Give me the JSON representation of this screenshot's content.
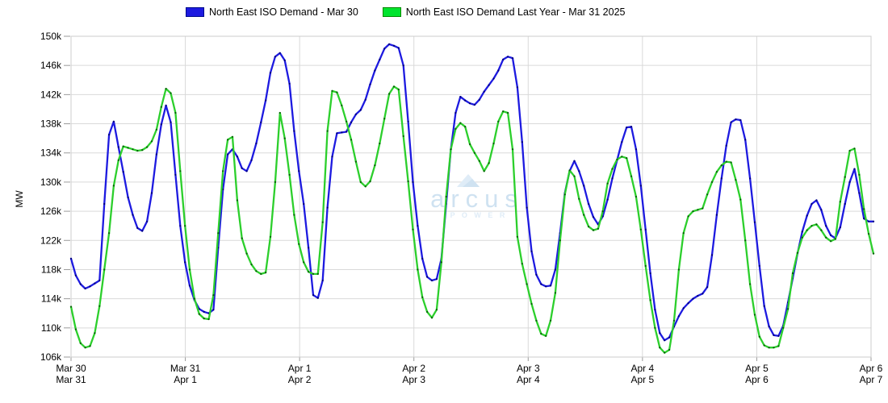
{
  "legend": {
    "items": [
      {
        "label": "North East ISO Demand - Mar 30",
        "swatch_fill": "#1c13e0",
        "swatch_border": "#0000990"
      },
      {
        "label": "North East ISO Demand Last Year - Mar 31 2025",
        "swatch_fill": "#00e42e",
        "swatch_border": "#008a00"
      }
    ]
  },
  "axes": {
    "y_label": "MW",
    "y_tick_labels": [
      "150k",
      "146k",
      "142k",
      "138k",
      "134k",
      "130k",
      "126k",
      "122k",
      "118k",
      "114k",
      "110k",
      "106k"
    ],
    "x_tick_labels_row1": [
      "Mar 30",
      "Mar 31",
      "Apr 1",
      "Apr 2",
      "Apr 3",
      "Apr 4",
      "Apr 5",
      "Apr 6"
    ],
    "x_tick_labels_row2": [
      "Mar 31",
      "Apr 1",
      "Apr 2",
      "Apr 3",
      "Apr 4",
      "Apr 5",
      "Apr 6",
      "Apr 7"
    ]
  },
  "watermark": {
    "name": "arcus",
    "sub": "P O W E R"
  },
  "chart_data": {
    "type": "line",
    "title": "",
    "xlabel": "",
    "ylabel": "MW",
    "y_unit": "MW (values in thousands, k)",
    "ylim": [
      106,
      150
    ],
    "y_tick_step": 4,
    "grid": true,
    "legend_position": "top",
    "x_resolution": "hourly samples, 24 per day, 7 days + 2 trailing hours (170 points)",
    "x_day_labels_current": [
      "Mar 30",
      "Mar 31",
      "Apr 1",
      "Apr 2",
      "Apr 3",
      "Apr 4",
      "Apr 5",
      "Apr 6"
    ],
    "x_day_labels_last_year": [
      "Mar 31",
      "Apr 1",
      "Apr 2",
      "Apr 3",
      "Apr 4",
      "Apr 5",
      "Apr 6",
      "Apr 7"
    ],
    "series": [
      {
        "name": "North East ISO Demand - Mar 30",
        "color": "#1d1ae0",
        "marker_color": "#000078",
        "values": [
          119.5,
          117.2,
          116.0,
          115.4,
          115.7,
          116.1,
          116.5,
          127.0,
          136.5,
          138.3,
          134.8,
          131.4,
          127.9,
          125.5,
          123.7,
          123.3,
          124.6,
          128.5,
          133.8,
          137.9,
          140.5,
          138.2,
          131.0,
          124.0,
          119.0,
          115.8,
          113.8,
          112.6,
          112.2,
          112.0,
          112.5,
          121.0,
          129.0,
          133.8,
          134.5,
          133.5,
          131.9,
          131.5,
          133.0,
          135.3,
          138.2,
          141.2,
          145.0,
          147.2,
          147.7,
          146.7,
          143.5,
          137.0,
          131.5,
          127.0,
          121.0,
          114.5,
          114.1,
          116.5,
          126.5,
          133.5,
          136.7,
          136.8,
          136.9,
          138.2,
          139.3,
          139.9,
          141.3,
          143.4,
          145.3,
          146.8,
          148.3,
          148.9,
          148.7,
          148.4,
          146.0,
          138.3,
          130.0,
          124.0,
          119.5,
          117.0,
          116.5,
          116.7,
          119.5,
          127.0,
          134.5,
          139.5,
          141.7,
          141.2,
          140.8,
          140.6,
          141.3,
          142.4,
          143.3,
          144.2,
          145.3,
          146.8,
          147.2,
          147.0,
          143.0,
          135.5,
          126.5,
          120.5,
          117.3,
          116.0,
          115.7,
          115.8,
          118.0,
          123.0,
          128.5,
          131.5,
          132.9,
          131.5,
          129.5,
          127.0,
          125.2,
          124.2,
          125.3,
          127.6,
          130.5,
          133.0,
          135.5,
          137.5,
          137.6,
          134.5,
          129.5,
          123.5,
          117.5,
          112.5,
          109.3,
          108.3,
          108.7,
          110.2,
          111.6,
          112.7,
          113.4,
          114.0,
          114.4,
          114.7,
          115.6,
          120.0,
          125.5,
          130.5,
          135.0,
          138.2,
          138.6,
          138.5,
          135.8,
          130.5,
          124.5,
          118.5,
          113.0,
          110.2,
          109.0,
          108.9,
          110.3,
          113.5,
          116.8,
          120.2,
          123.2,
          125.4,
          127.0,
          127.5,
          126.2,
          124.0,
          122.7,
          122.3,
          123.8,
          127.0,
          130.0,
          131.8,
          128.5,
          125.0,
          124.6,
          124.6
        ]
      },
      {
        "name": "North East ISO Demand Last Year - Mar 31 2025",
        "color": "#2ccf2c",
        "marker_color": "#0a5c0a",
        "values": [
          112.9,
          109.8,
          107.9,
          107.3,
          107.5,
          109.3,
          113.0,
          118.0,
          123.0,
          129.5,
          133.0,
          134.9,
          134.7,
          134.5,
          134.3,
          134.4,
          134.8,
          135.6,
          137.2,
          140.3,
          142.8,
          142.2,
          139.5,
          131.5,
          124.0,
          118.0,
          114.0,
          111.9,
          111.3,
          111.2,
          114.5,
          123.0,
          131.5,
          135.8,
          136.2,
          127.5,
          122.3,
          120.2,
          118.7,
          117.8,
          117.4,
          117.6,
          122.5,
          130.0,
          139.5,
          136.0,
          131.0,
          125.5,
          121.5,
          119.0,
          117.7,
          117.4,
          117.4,
          124.5,
          137.0,
          142.5,
          142.3,
          140.5,
          138.3,
          135.8,
          132.8,
          130.0,
          129.4,
          130.1,
          132.3,
          135.3,
          138.7,
          142.1,
          143.1,
          142.7,
          136.3,
          130.1,
          123.5,
          118.0,
          114.2,
          112.2,
          111.4,
          112.5,
          119.0,
          128.0,
          134.5,
          137.3,
          138.1,
          137.6,
          135.2,
          134.0,
          132.9,
          131.5,
          132.6,
          135.3,
          138.3,
          139.7,
          139.5,
          134.5,
          122.5,
          118.8,
          116.0,
          113.3,
          111.0,
          109.2,
          108.9,
          111.0,
          114.8,
          122.0,
          128.3,
          131.6,
          130.8,
          127.7,
          125.5,
          123.9,
          123.4,
          123.6,
          126.0,
          129.8,
          131.8,
          133.1,
          133.5,
          133.3,
          130.8,
          128.0,
          123.5,
          118.5,
          113.8,
          110.0,
          107.3,
          106.6,
          107.0,
          111.0,
          118.0,
          123.0,
          125.3,
          126.0,
          126.2,
          126.4,
          128.3,
          130.0,
          131.4,
          132.3,
          132.8,
          132.7,
          130.3,
          127.6,
          122.0,
          116.0,
          111.8,
          108.8,
          107.6,
          107.3,
          107.3,
          107.5,
          110.0,
          112.6,
          117.5,
          120.3,
          122.4,
          123.4,
          124.0,
          124.2,
          123.4,
          122.4,
          121.9,
          122.2,
          127.3,
          130.7,
          134.3,
          134.6,
          131.0,
          126.3,
          122.9,
          120.2
        ]
      }
    ]
  },
  "style": {
    "grid_color": "#d9d9d9",
    "border_color": "#cccccc",
    "tick_color": "#9a9a9a",
    "tick_text_color": "#000000",
    "watermark_color": "#cfe2f1",
    "watermark_sub_color": "#dfecf7"
  }
}
